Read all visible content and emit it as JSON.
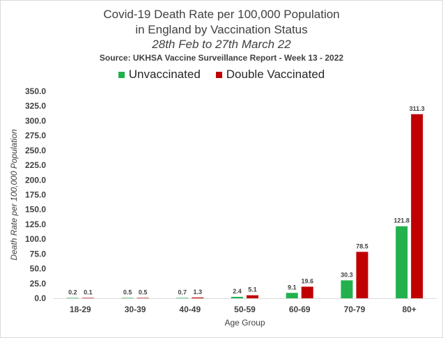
{
  "chart_data": {
    "type": "bar",
    "title_lines": [
      "Covid-19 Death Rate per 100,000 Population",
      "in England by Vaccination Status",
      "28th Feb to 27th March 22",
      "Source: UKHSA Vaccine Surveillance Report - Week 13 - 2022"
    ],
    "categories": [
      "18-29",
      "30-39",
      "40-49",
      "50-59",
      "60-69",
      "70-79",
      "80+"
    ],
    "series": [
      {
        "name": "Unvaccinated",
        "color": "#22b14c",
        "values": [
          0.2,
          0.5,
          0.7,
          2.4,
          9.1,
          30.3,
          121.8
        ],
        "labels": [
          "0.2",
          "0.5",
          "0.7",
          "2.4",
          "9.1",
          "30.3",
          "121.8"
        ]
      },
      {
        "name": "Double Vaccinated",
        "color": "#c00000",
        "values": [
          0.1,
          0.5,
          1.3,
          5.1,
          19.6,
          78.5,
          311.3
        ],
        "labels": [
          "0.1",
          "0.5",
          "1.3",
          "5.1",
          "19.6",
          "78.5",
          "311.3"
        ]
      }
    ],
    "xlabel": "Age Group",
    "ylabel": "Death Rate per 100,000 Population",
    "ylim": [
      0,
      350
    ],
    "yticks": [
      0,
      25,
      50,
      75,
      100,
      125,
      150,
      175,
      200,
      225,
      250,
      275,
      300,
      325,
      350
    ],
    "ytick_labels": [
      "0.0",
      "25.0",
      "50.0",
      "75.0",
      "100.0",
      "125.0",
      "150.0",
      "175.0",
      "200.0",
      "225.0",
      "250.0",
      "275.0",
      "300.0",
      "325.0",
      "350.0"
    ],
    "grid": false,
    "legend_position": "top"
  }
}
